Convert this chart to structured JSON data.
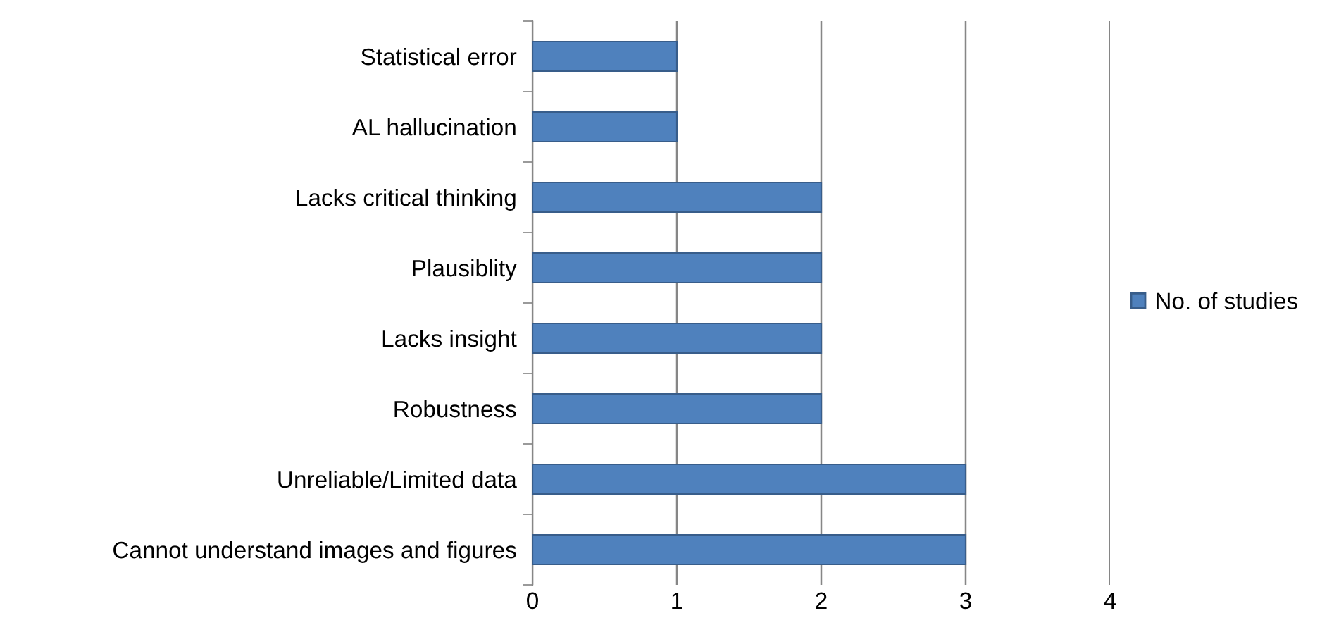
{
  "chart_data": {
    "type": "bar",
    "orientation": "horizontal",
    "categories": [
      "Statistical error",
      "AL hallucination",
      "Lacks critical thinking",
      "Plausiblity",
      "Lacks insight",
      "Robustness",
      "Unreliable/Limited data",
      "Cannot understand images and figures"
    ],
    "series": [
      {
        "name": "No. of studies",
        "color": "#4f81bd",
        "values": [
          1,
          1,
          2,
          2,
          2,
          2,
          3,
          3
        ]
      }
    ],
    "xlim": [
      0,
      4
    ],
    "xticks": [
      0,
      1,
      2,
      3,
      4
    ],
    "grid": "x",
    "legend": "right"
  }
}
